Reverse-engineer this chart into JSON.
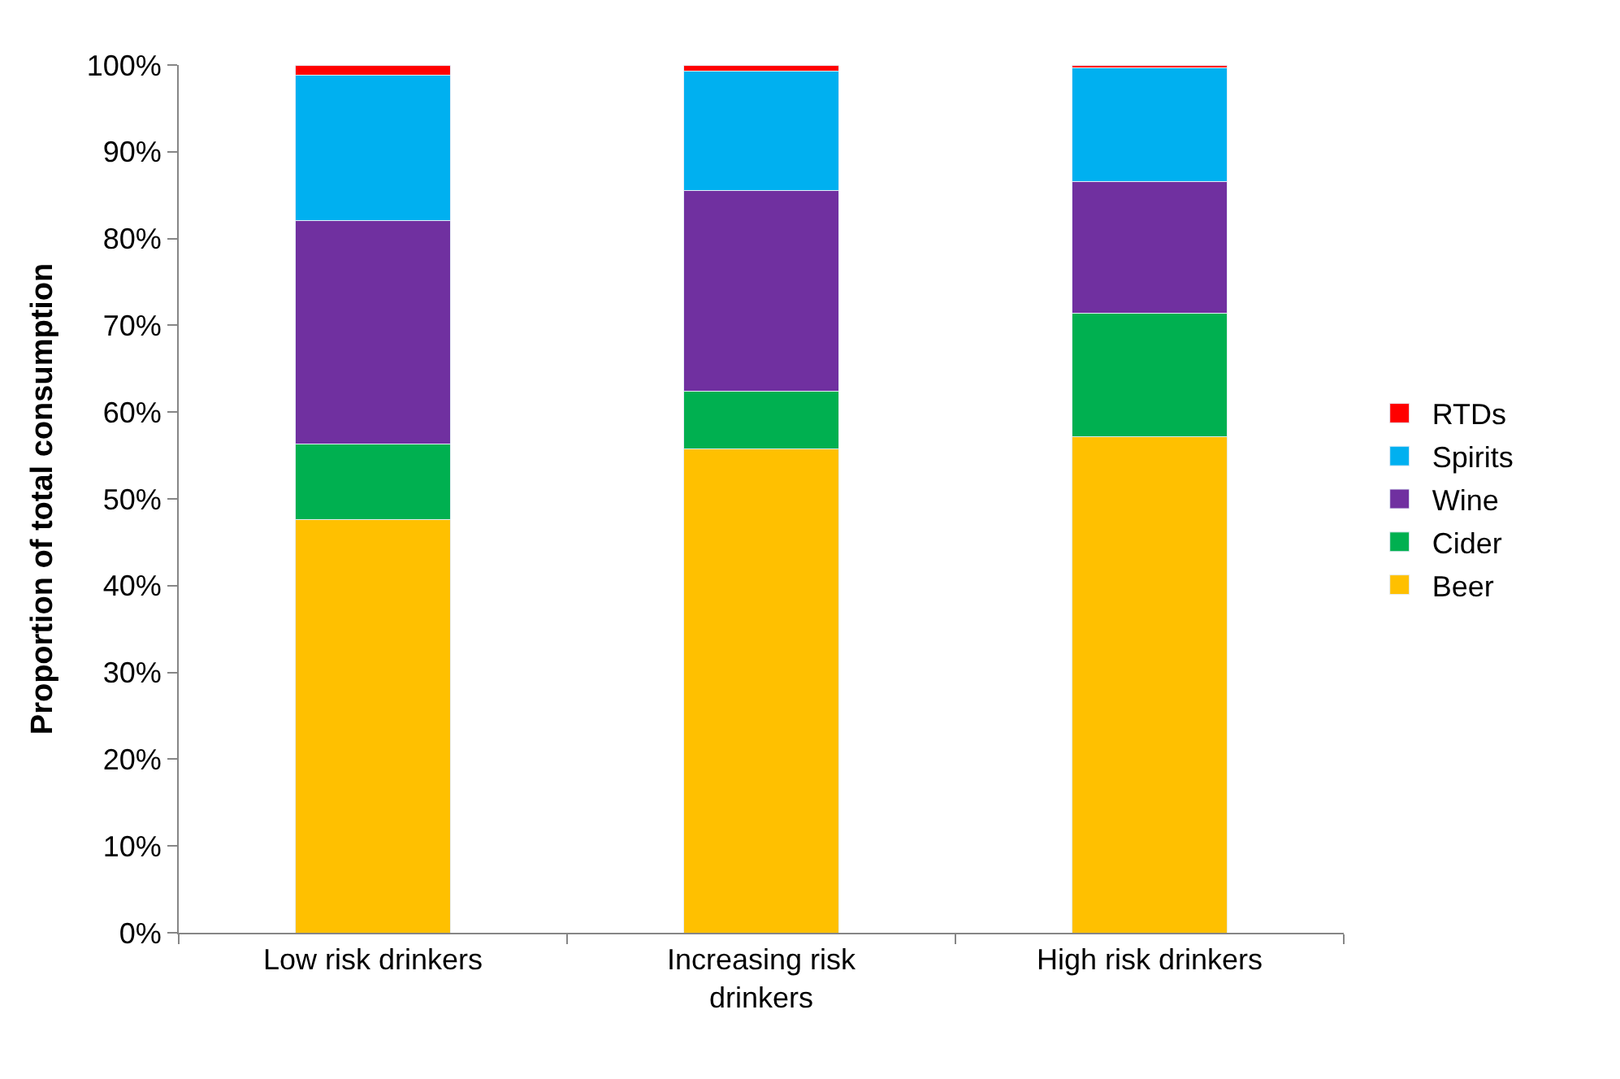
{
  "chart_data": {
    "type": "bar",
    "stacked": true,
    "ylabel": "Proportion of total consumption",
    "categories": [
      "Low risk drinkers",
      "Increasing risk drinkers",
      "High risk drinkers"
    ],
    "series": [
      {
        "name": "Beer",
        "color": "#ffc000",
        "values": [
          47.6,
          55.8,
          57.2
        ]
      },
      {
        "name": "Cider",
        "color": "#00b050",
        "values": [
          8.7,
          6.6,
          14.2
        ]
      },
      {
        "name": "Wine",
        "color": "#7030a0",
        "values": [
          25.8,
          23.1,
          15.2
        ]
      },
      {
        "name": "Spirits",
        "color": "#00b0f0",
        "values": [
          16.7,
          13.8,
          13.1
        ]
      },
      {
        "name": "RTDs",
        "color": "#ff0000",
        "values": [
          1.2,
          0.7,
          0.3
        ]
      }
    ],
    "ylim": [
      0,
      100
    ],
    "yticks": [
      {
        "value": 0,
        "label": "0%"
      },
      {
        "value": 10,
        "label": "10%"
      },
      {
        "value": 20,
        "label": "20%"
      },
      {
        "value": 30,
        "label": "30%"
      },
      {
        "value": 40,
        "label": "40%"
      },
      {
        "value": 50,
        "label": "50%"
      },
      {
        "value": 60,
        "label": "60%"
      },
      {
        "value": 70,
        "label": "70%"
      },
      {
        "value": 80,
        "label": "80%"
      },
      {
        "value": 90,
        "label": "90%"
      },
      {
        "value": 100,
        "label": "100%"
      }
    ],
    "legend": "right"
  }
}
